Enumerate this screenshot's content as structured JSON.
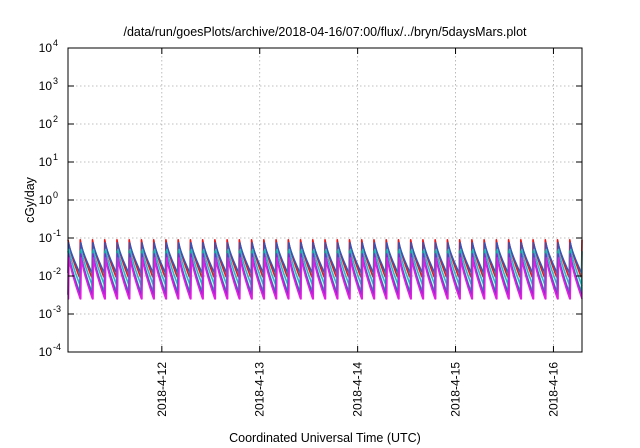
{
  "chart_data": {
    "type": "line",
    "title": "/data/run/goesPlots/archive/2018-04-16/07:00/flux/../bryn/5daysMars.plot",
    "xlabel": "Coordinated Universal Time (UTC)",
    "ylabel": "cGy/day",
    "yscale": "log",
    "ylim": [
      0.0001,
      10000
    ],
    "y_ticks": [
      {
        "base": "10",
        "exp": "-4"
      },
      {
        "base": "10",
        "exp": "-3"
      },
      {
        "base": "10",
        "exp": "-2"
      },
      {
        "base": "10",
        "exp": "-1"
      },
      {
        "base": "10",
        "exp": "0"
      },
      {
        "base": "10",
        "exp": "1"
      },
      {
        "base": "10",
        "exp": "2"
      },
      {
        "base": "10",
        "exp": "3"
      },
      {
        "base": "10",
        "exp": "4"
      }
    ],
    "xlim": [
      "2018-04-11T01:00",
      "2018-04-16T07:00"
    ],
    "x_ticks": [
      "2018-4-12",
      "2018-4-13",
      "2018-4-14",
      "2018-4-15",
      "2018-4-16"
    ],
    "grid": true,
    "legend": "none",
    "cycle_hours": 3,
    "series": [
      {
        "color": "#e8171b",
        "peak": 0.09,
        "trough": 0.0095
      },
      {
        "color": "#3a53b4",
        "peak": 0.075,
        "trough": 0.012
      },
      {
        "color": "#2fb8c7",
        "peak": 0.05,
        "trough": 0.0055
      },
      {
        "color": "#17a8a0",
        "peak": 0.045,
        "trough": 0.004
      },
      {
        "color": "#7a2fd0",
        "peak": 0.038,
        "trough": 0.0032
      },
      {
        "color": "#e020e0",
        "peak": 0.03,
        "trough": 0.0025
      }
    ]
  }
}
